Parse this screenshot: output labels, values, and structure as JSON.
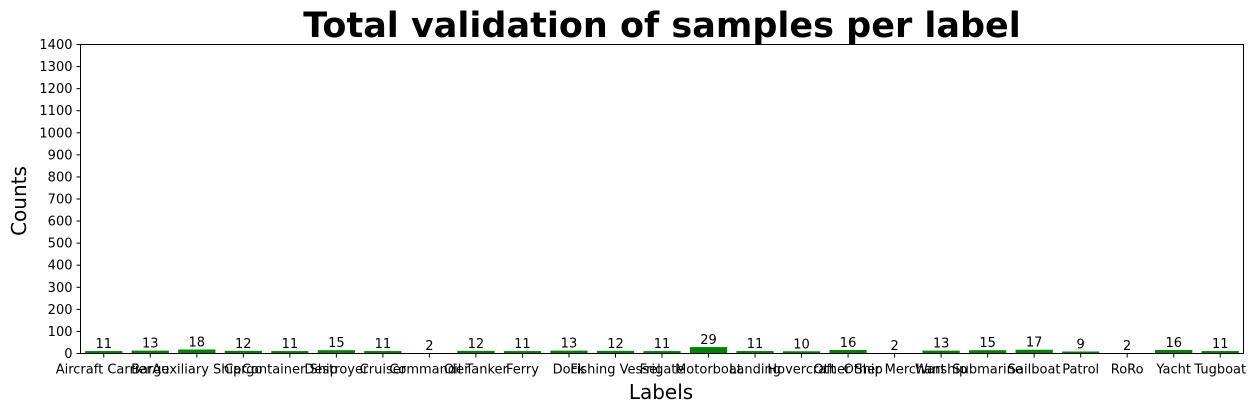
{
  "chart_data": {
    "type": "bar",
    "title": "Total validation of samples per label",
    "xlabel": "Labels",
    "ylabel": "Counts",
    "ylim": [
      0,
      1400
    ],
    "yticks": [
      0,
      100,
      200,
      300,
      400,
      500,
      600,
      700,
      800,
      900,
      1000,
      1100,
      1200,
      1300,
      1400
    ],
    "categories": [
      "Aircraft Carrier",
      "Barge",
      "Auxiliary Ship",
      "Cargo",
      "Container Ship",
      "Destroyer",
      "Cruiser",
      "Commander",
      "Oil Tanker",
      "Ferry",
      "Dock",
      "Fishing Vessel",
      "Frigate",
      "Motorboat",
      "Landing",
      "Hovercraft",
      "Other Ship",
      "Other Merchant",
      "Warship",
      "Submarine",
      "Sailboat",
      "Patrol",
      "RoRo",
      "Yacht",
      "Tugboat"
    ],
    "values": [
      11,
      13,
      18,
      12,
      11,
      15,
      11,
      2,
      12,
      11,
      13,
      12,
      11,
      29,
      11,
      10,
      16,
      2,
      13,
      15,
      17,
      9,
      2,
      16,
      11
    ],
    "bar_color": "#008000",
    "grid": false,
    "legend": "none"
  }
}
